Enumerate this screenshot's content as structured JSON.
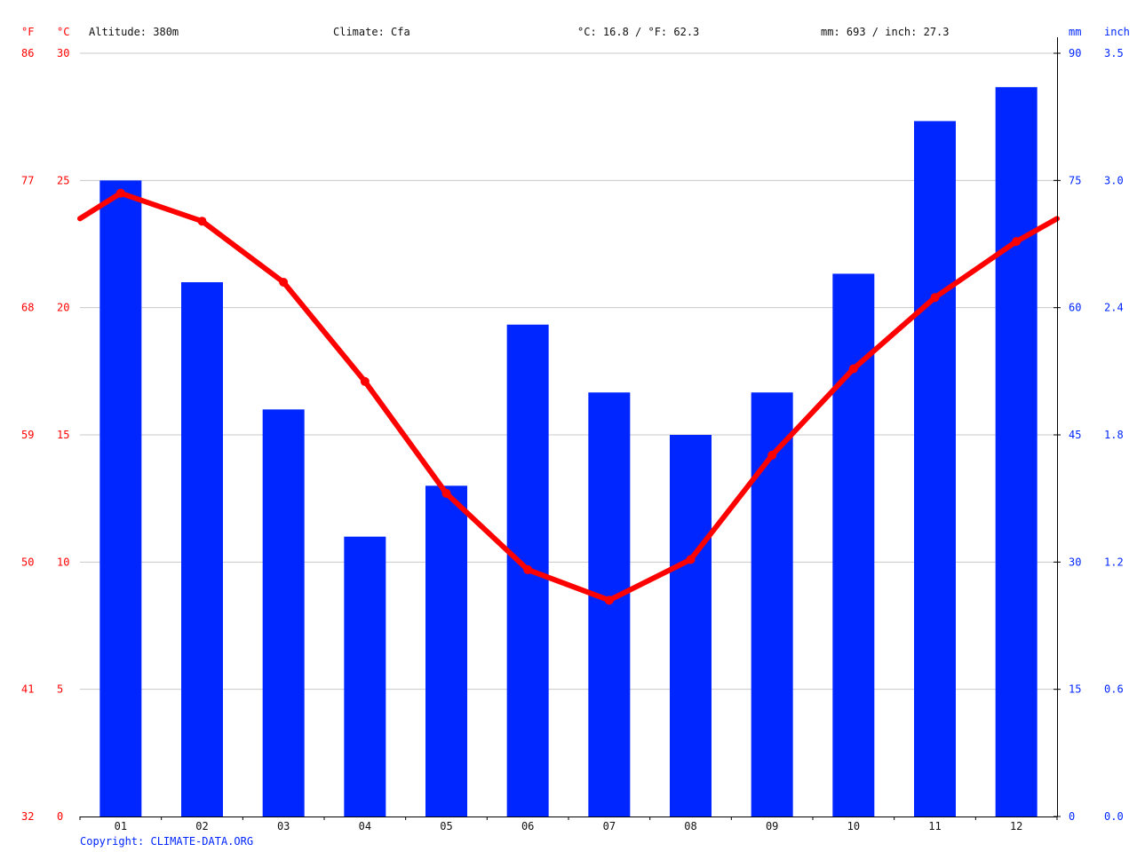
{
  "header": {
    "unit_f": "°F",
    "unit_c": "°C",
    "altitude": "Altitude: 380m",
    "climate": "Climate: Cfa",
    "temp_avg": "°C: 16.8 / °F: 62.3",
    "precip_total": "mm: 693 / inch: 27.3",
    "unit_mm": "mm",
    "unit_inch": "inch"
  },
  "footer": {
    "copyright": "Copyright: CLIMATE-DATA.ORG"
  },
  "colors": {
    "temperature": "#ff0000",
    "precipitation": "#0026ff",
    "grid": "#c8c8c8"
  },
  "chart_data": {
    "type": "bar+line",
    "categories": [
      "01",
      "02",
      "03",
      "04",
      "05",
      "06",
      "07",
      "08",
      "09",
      "10",
      "11",
      "12"
    ],
    "precipitation_mm": [
      75,
      63,
      48,
      33,
      39,
      58,
      50,
      45,
      50,
      64,
      82,
      86
    ],
    "temperature_c": [
      24.5,
      23.4,
      21.0,
      17.1,
      12.7,
      9.7,
      8.5,
      10.1,
      14.2,
      17.6,
      20.4,
      22.6
    ],
    "temperature_line_edges_c": [
      23.5,
      23.5
    ],
    "axes": {
      "left_c": {
        "ylim": [
          0,
          30
        ],
        "ticks": [
          "0",
          "5",
          "10",
          "15",
          "20",
          "25",
          "30"
        ]
      },
      "left_f": {
        "ticks": [
          "32",
          "41",
          "50",
          "59",
          "68",
          "77",
          "86"
        ]
      },
      "right_mm": {
        "ylim": [
          0,
          90
        ],
        "ticks": [
          "0",
          "15",
          "30",
          "45",
          "60",
          "75",
          "90"
        ]
      },
      "right_inch": {
        "ticks": [
          "0.0",
          "0.6",
          "1.2",
          "1.8",
          "2.4",
          "3.0",
          "3.5"
        ]
      }
    },
    "grid": true
  }
}
